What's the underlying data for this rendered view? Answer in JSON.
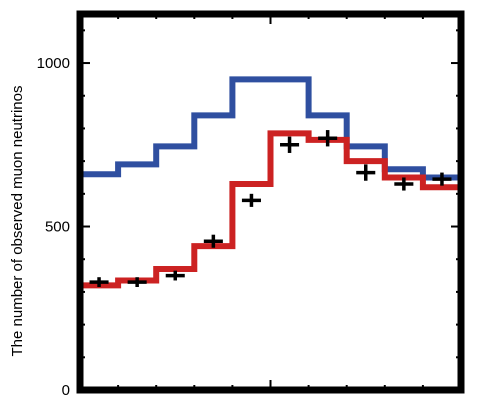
{
  "chart_data": {
    "type": "line",
    "ylabel": "The number of observed muon neutrinos",
    "xlabel": "",
    "ylim": [
      0,
      1000
    ],
    "ymax": 1150,
    "xlim": [
      0,
      10
    ],
    "y_ticks": [
      0,
      500,
      1000
    ],
    "y_tick_labels": [
      "0",
      "500",
      "1000"
    ],
    "x_minor_ticks": [
      1,
      2,
      3,
      4,
      6,
      7,
      8,
      9
    ],
    "x_major_ticks": [
      5
    ],
    "grid": false,
    "legend": false,
    "series": [
      {
        "color": "#2f4fa0",
        "style": "step",
        "edges": [
          0,
          1,
          2,
          3,
          4,
          5,
          6,
          7,
          8,
          9,
          10
        ],
        "values": [
          660,
          690,
          745,
          840,
          950,
          950,
          840,
          745,
          675,
          650
        ]
      },
      {
        "color": "#cc2222",
        "style": "step",
        "edges": [
          0,
          1,
          2,
          3,
          4,
          5,
          6,
          7,
          8,
          9,
          10
        ],
        "values": [
          320,
          335,
          370,
          440,
          630,
          785,
          765,
          700,
          650,
          620
        ]
      },
      {
        "color": "#000000",
        "style": "errorbar",
        "x": [
          0.5,
          1.5,
          2.5,
          3.5,
          4.5,
          5.5,
          6.5,
          7.5,
          8.5,
          9.5
        ],
        "y": [
          330,
          330,
          350,
          455,
          580,
          750,
          770,
          665,
          630,
          645
        ],
        "xerr": 0.5,
        "yerr": [
          15,
          15,
          15,
          20,
          20,
          25,
          25,
          25,
          20,
          20
        ]
      }
    ]
  }
}
